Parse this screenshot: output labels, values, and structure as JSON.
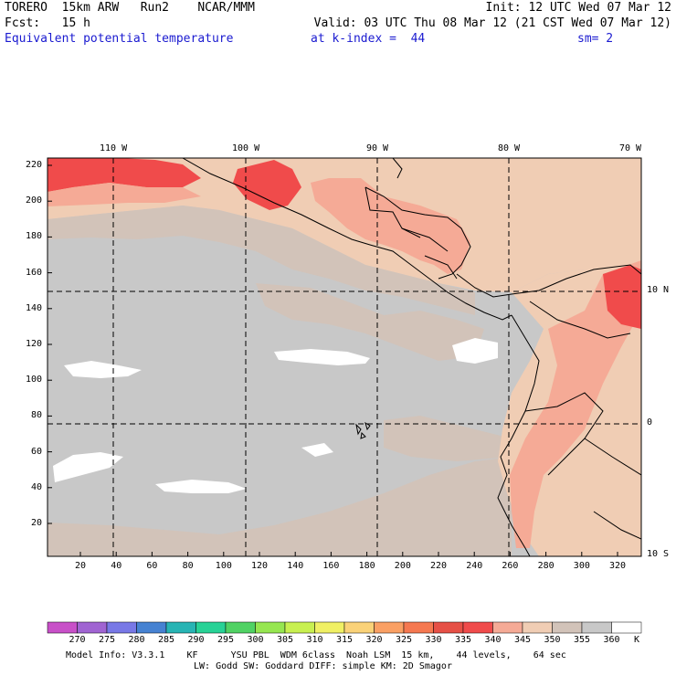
{
  "header": {
    "line1_left": "TORERO  15km ARW   Run2    NCAR/MMM",
    "line1_right": "Init: 12 UTC Wed 07 Mar 12",
    "line2_left": "Fcst:   15 h",
    "line2_right": "Valid: 03 UTC Thu 08 Mar 12 (21 CST Wed 07 Mar 12)",
    "line3_field": "Equivalent potential temperature",
    "line3_level": "at k-index =  44",
    "line3_smooth": "sm= 2"
  },
  "map": {
    "lon_labels": [
      "110 W",
      "100 W",
      "90 W",
      "80 W",
      "70 W"
    ],
    "lat_labels": [
      "10 N",
      "0",
      "10 S"
    ],
    "y_ticks": [
      "220",
      "200",
      "180",
      "160",
      "140",
      "120",
      "100",
      "80",
      "60",
      "40",
      "20"
    ],
    "x_ticks": [
      "20",
      "40",
      "60",
      "80",
      "100",
      "120",
      "140",
      "160",
      "180",
      "200",
      "220",
      "240",
      "260",
      "280",
      "300",
      "320"
    ]
  },
  "colorbar": {
    "unit": "K",
    "labels": [
      "270",
      "275",
      "280",
      "285",
      "290",
      "295",
      "300",
      "305",
      "310",
      "315",
      "320",
      "325",
      "330",
      "335",
      "340",
      "345",
      "350",
      "355",
      "360"
    ],
    "colors": [
      "#c850c8",
      "#a064d2",
      "#7878e6",
      "#4682d2",
      "#28b4b4",
      "#28d296",
      "#50d264",
      "#96e650",
      "#c8f050",
      "#f0f064",
      "#fad278",
      "#faa064",
      "#f57850",
      "#e65046",
      "#f04b4b",
      "#f5aa96",
      "#f0cdb4",
      "#d2c3b9",
      "#c8c8c8",
      "#ffffff"
    ]
  },
  "footer": {
    "line1": "Model Info: V3.3.1    KF      YSU PBL  WDM 6class  Noah LSM  15 km,    44 levels,    64 sec",
    "line2": "LW: Godd SW: Goddard DIFF: simple KM: 2D Smagor"
  }
}
